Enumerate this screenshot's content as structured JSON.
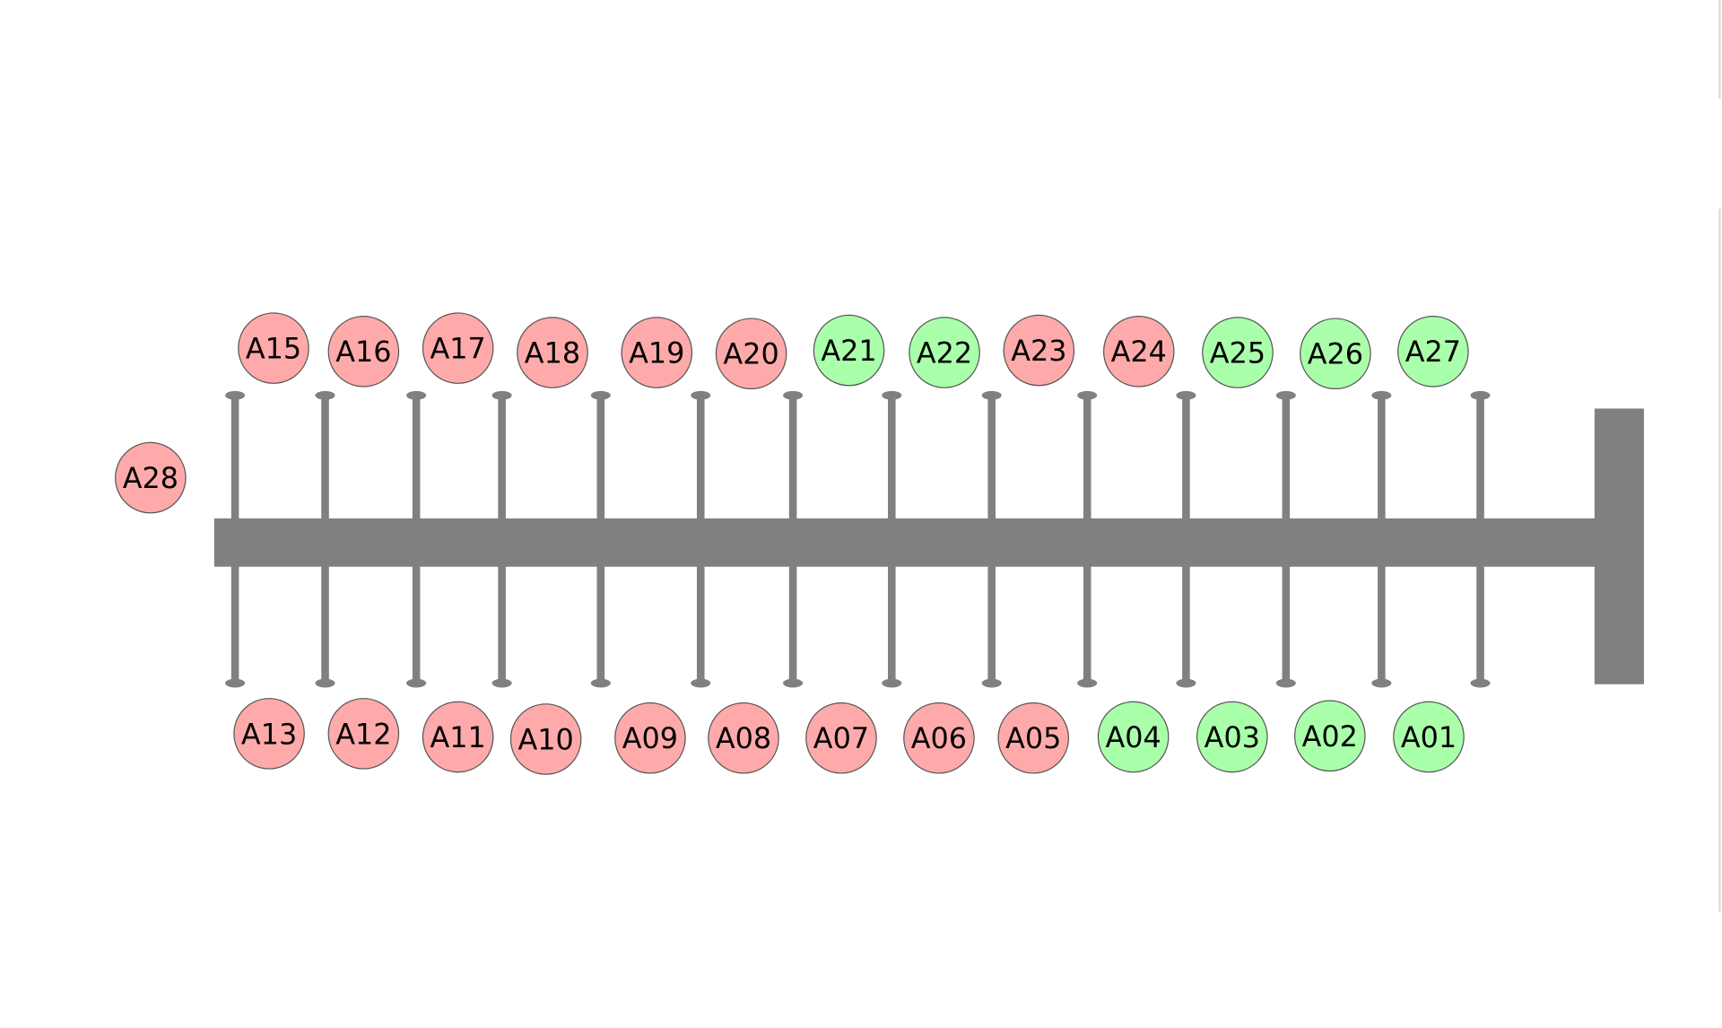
{
  "nodes": [
    {
      "label": "A15",
      "color": "#ffaaaa"
    },
    {
      "label": "A16",
      "color": "#ffaaaa"
    },
    {
      "label": "A17",
      "color": "#ffaaaa"
    },
    {
      "label": "A18",
      "color": "#ffaaaa"
    },
    {
      "label": "A19",
      "color": "#ffaaaa"
    },
    {
      "label": "A20",
      "color": "#ffaaaa"
    },
    {
      "label": "A21",
      "color": "#aaffaa"
    },
    {
      "label": "A22",
      "color": "#aaffaa"
    },
    {
      "label": "A23",
      "color": "#ffaaaa"
    },
    {
      "label": "A24",
      "color": "#ffaaaa"
    },
    {
      "label": "A25",
      "color": "#aaffaa"
    },
    {
      "label": "A26",
      "color": "#aaffaa"
    },
    {
      "label": "A27",
      "color": "#aaffaa"
    },
    {
      "label": "A13",
      "color": "#ffaaaa"
    },
    {
      "label": "A12",
      "color": "#ffaaaa"
    },
    {
      "label": "A11",
      "color": "#ffaaaa"
    },
    {
      "label": "A10",
      "color": "#ffaaaa"
    },
    {
      "label": "A09",
      "color": "#ffaaaa"
    },
    {
      "label": "A08",
      "color": "#ffaaaa"
    },
    {
      "label": "A07",
      "color": "#ffaaaa"
    },
    {
      "label": "A06",
      "color": "#ffaaaa"
    },
    {
      "label": "A05",
      "color": "#ffaaaa"
    },
    {
      "label": "A04",
      "color": "#aaffaa"
    },
    {
      "label": "A03",
      "color": "#aaffaa"
    },
    {
      "label": "A02",
      "color": "#aaffaa"
    },
    {
      "label": "A01",
      "color": "#aaffaa"
    },
    {
      "label": "A28",
      "color": "#ffaaaa"
    }
  ]
}
